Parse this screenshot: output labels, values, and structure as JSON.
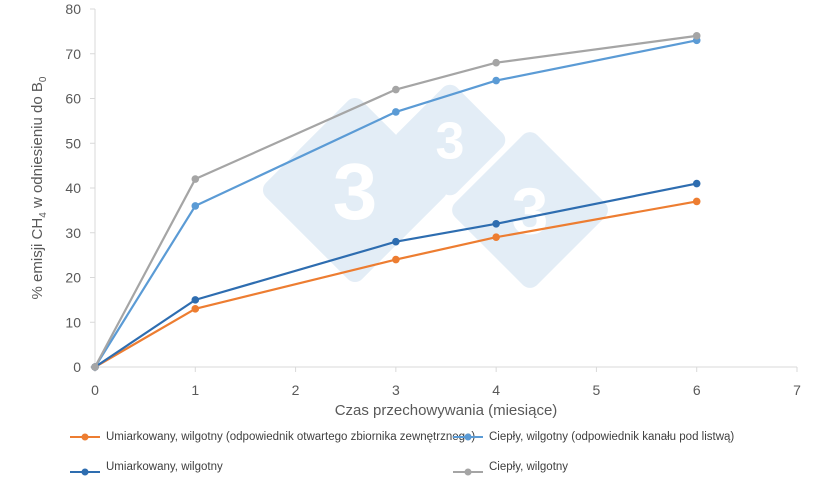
{
  "chart_data": {
    "type": "line",
    "title": "",
    "xlabel": "Czas przechowywania (miesiące)",
    "ylabel": "% emisji CH4 w odniesieniu do B0",
    "ylabel_parts": {
      "main": "% emisji CH",
      "sub1": "4",
      "mid": " w odniesieniu do B",
      "sub2": "0"
    },
    "xlim": [
      0,
      7
    ],
    "ylim": [
      0,
      80
    ],
    "xticks": [
      0,
      1,
      2,
      3,
      4,
      5,
      6,
      7
    ],
    "yticks": [
      0,
      10,
      20,
      30,
      40,
      50,
      60,
      70,
      80
    ],
    "grid": false,
    "legend_position": "bottom",
    "x": [
      0,
      1,
      3,
      4,
      6
    ],
    "series": [
      {
        "name": "Umiarkowany, wilgotny (odpowiednik otwartego zbiornika zewnętrznego)",
        "color": "#ED7D31",
        "values": [
          0,
          13,
          24,
          29,
          37
        ]
      },
      {
        "name": "Ciepły, wilgotny (odpowiednik kanału pod listwą)",
        "color": "#5B9BD5",
        "values": [
          0,
          36,
          57,
          64,
          73
        ]
      },
      {
        "name": "Umiarkowany, wilgotny",
        "color": "#2E6DB0",
        "values": [
          0,
          15,
          28,
          32,
          41
        ]
      },
      {
        "name": "Ciepły, wilgotny",
        "color": "#A5A5A5",
        "values": [
          0,
          42,
          62,
          68,
          74
        ]
      }
    ]
  },
  "watermark": {
    "glyph": "3",
    "color": "#E3EDF6"
  }
}
